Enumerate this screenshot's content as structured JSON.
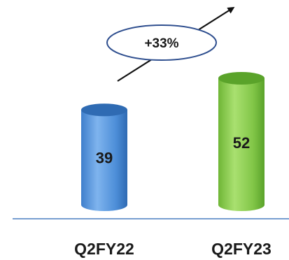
{
  "chart_data": {
    "type": "bar",
    "categories": [
      "Q2FY22",
      "Q2FY23"
    ],
    "values": [
      39,
      52
    ],
    "data_labels": [
      "39",
      "52"
    ],
    "growth_annotation": "+33%",
    "ylim": [
      0,
      60
    ],
    "grid": false,
    "legend": "none"
  },
  "colors": {
    "bars": [
      "#5a9be0",
      "#8fd14f"
    ],
    "bar_dark": [
      "#2f6bb3",
      "#5aa32a"
    ],
    "axis": "#4a7fc1",
    "annotation_border": "#2f4f8f"
  }
}
